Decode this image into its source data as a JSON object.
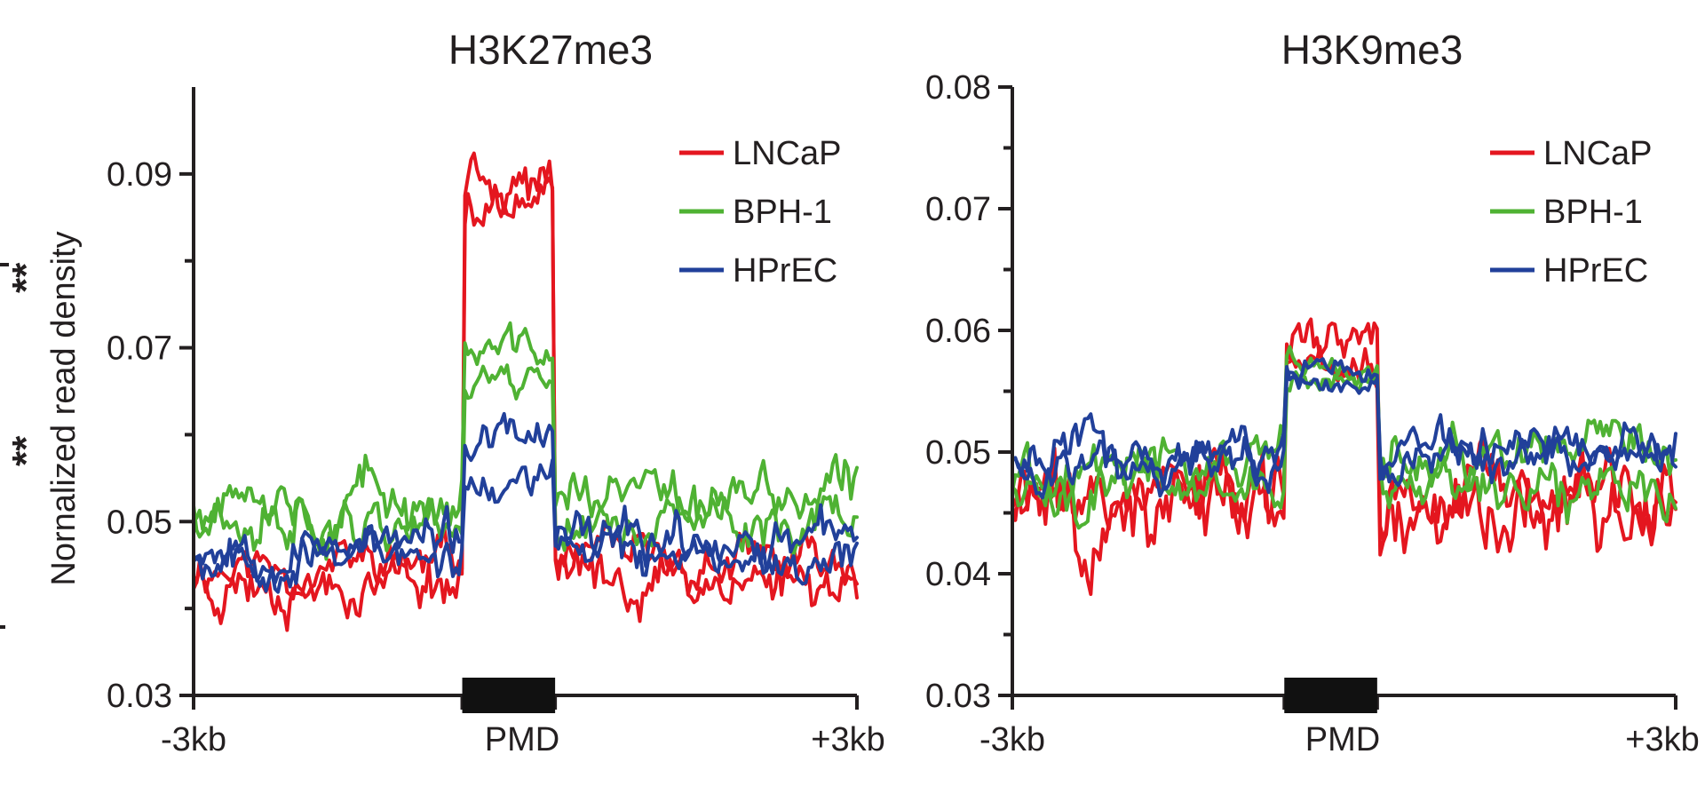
{
  "chart_data": [
    {
      "type": "line",
      "title": "H3K27me3",
      "ylabel": "Nornalized read density",
      "xlabel": "",
      "ylim": [
        0.03,
        0.1
      ],
      "yticks": [
        0.03,
        0.05,
        0.07,
        0.09
      ],
      "ytick_labels": [
        "0.03",
        "0.05",
        "0.07",
        "0.09"
      ],
      "yminor": [
        0.04,
        0.06,
        0.08
      ],
      "xticks": [
        "-3kb",
        "PMD",
        "+3kb"
      ],
      "region_label": "PMD",
      "x_domain": [
        0,
        100
      ],
      "pmd_region": [
        40.5,
        54.5
      ],
      "legend_position": "top-right",
      "series": [
        {
          "name": "LNCaP",
          "color": "#e4161f",
          "traces": [
            {
              "level": 0.045,
              "amp": 0.0035,
              "pmd": 0.088,
              "pmdAmp": 0.004,
              "seed": 11
            },
            {
              "level": 0.0435,
              "amp": 0.004,
              "pmd": 0.09,
              "pmdAmp": 0.004,
              "seed": 23
            }
          ]
        },
        {
          "name": "BPH-1",
          "color": "#4fb233",
          "traces": [
            {
              "level": 0.0525,
              "amp": 0.0045,
              "pmd": 0.0695,
              "pmdAmp": 0.003,
              "seed": 37
            },
            {
              "level": 0.0505,
              "amp": 0.004,
              "pmd": 0.067,
              "pmdAmp": 0.003,
              "seed": 41
            }
          ]
        },
        {
          "name": "HPrEC",
          "color": "#21409a",
          "traces": [
            {
              "level": 0.0475,
              "amp": 0.0035,
              "pmd": 0.059,
              "pmdAmp": 0.003,
              "seed": 53
            },
            {
              "level": 0.0465,
              "amp": 0.0035,
              "pmd": 0.054,
              "pmdAmp": 0.003,
              "seed": 67
            }
          ]
        }
      ]
    },
    {
      "type": "line",
      "title": "H3K9me3",
      "ylabel": "",
      "xlabel": "",
      "ylim": [
        0.03,
        0.08
      ],
      "yticks": [
        0.03,
        0.04,
        0.05,
        0.06,
        0.07,
        0.08
      ],
      "ytick_labels": [
        "0.03",
        "0.04",
        "0.05",
        "0.06",
        "0.07",
        "0.08"
      ],
      "yminor": [
        0.035,
        0.045,
        0.055,
        0.065,
        0.075
      ],
      "xticks": [
        "-3kb",
        "PMD",
        "+3kb"
      ],
      "region_label": "PMD",
      "x_domain": [
        0,
        100
      ],
      "pmd_region": [
        41,
        55
      ],
      "legend_position": "top-right",
      "series": [
        {
          "name": "LNCaP",
          "color": "#e4161f",
          "traces": [
            {
              "level": 0.046,
              "amp": 0.0045,
              "pmd": 0.059,
              "pmdAmp": 0.0025,
              "seed": 71
            },
            {
              "level": 0.0455,
              "amp": 0.0045,
              "pmd": 0.058,
              "pmdAmp": 0.0025,
              "seed": 83
            }
          ]
        },
        {
          "name": "BPH-1",
          "color": "#4fb233",
          "traces": [
            {
              "level": 0.0485,
              "amp": 0.003,
              "pmd": 0.0565,
              "pmdAmp": 0.0015,
              "seed": 97
            },
            {
              "level": 0.0475,
              "amp": 0.003,
              "pmd": 0.056,
              "pmdAmp": 0.0015,
              "seed": 101
            }
          ]
        },
        {
          "name": "HPrEC",
          "color": "#21409a",
          "traces": [
            {
              "level": 0.05,
              "amp": 0.0025,
              "pmd": 0.0565,
              "pmdAmp": 0.0015,
              "seed": 113
            },
            {
              "level": 0.0495,
              "amp": 0.0025,
              "pmd": 0.056,
              "pmdAmp": 0.0015,
              "seed": 127
            }
          ]
        }
      ]
    }
  ],
  "left_margin_marks": {
    "stars_upper": "**",
    "stars_lower": "**"
  }
}
